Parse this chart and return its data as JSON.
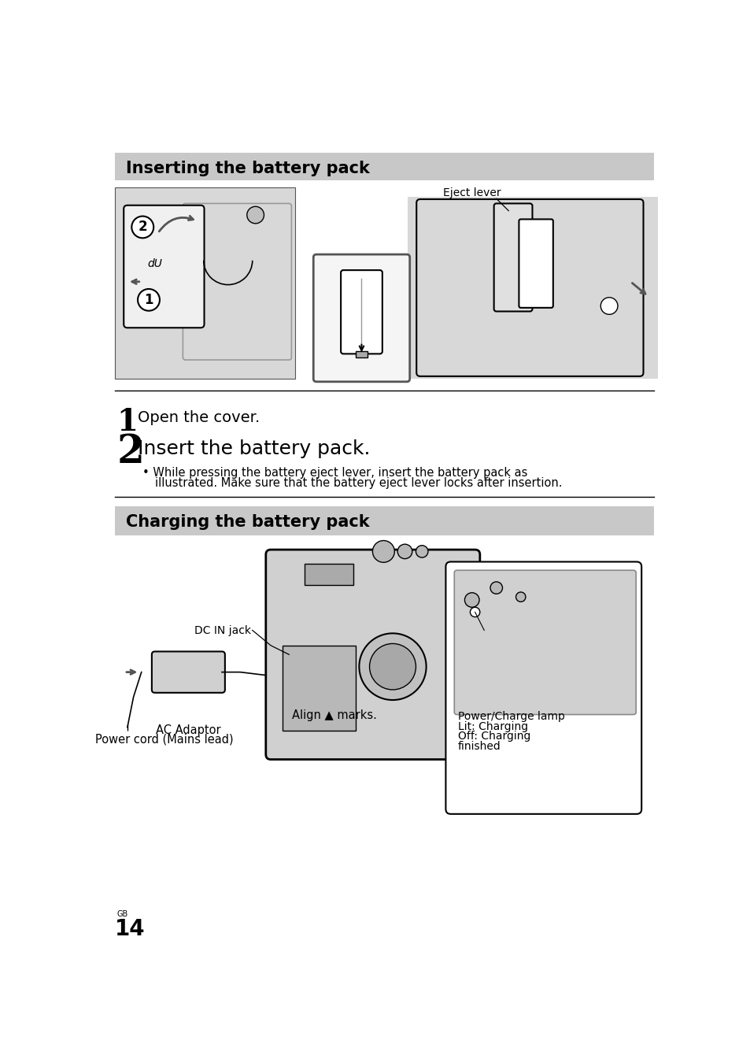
{
  "page_bg": "#ffffff",
  "header_bg": "#c8c8c8",
  "section1_title": "Inserting the battery pack",
  "section2_title": "Charging the battery pack",
  "step1_number": "1",
  "step1_text": "Open the cover.",
  "step2_number": "2",
  "step2_text": "Insert the battery pack.",
  "step2_bullet_line1": "• While pressing the battery eject lever, insert the battery pack as",
  "step2_bullet_line2": "illustrated. Make sure that the battery eject lever locks after insertion.",
  "eject_lever_label": "Eject lever",
  "dc_in_jack_label": "DC IN jack",
  "ac_adaptor_label": "AC Adaptor",
  "power_cord_label": "Power cord (Mains lead)",
  "align_label": "Align ▲ marks.",
  "power_charge_label_1": "Power/Charge lamp",
  "power_charge_label_2": "Lit: Charging",
  "power_charge_label_3": "Off: Charging",
  "power_charge_label_4": "finished",
  "page_number": "14",
  "page_label": "GB",
  "title_fontsize": 15,
  "body_fontsize": 10.5,
  "small_fontsize": 10,
  "header_color": "#c8c8c8",
  "diagram_fill": "#d8d8d8",
  "diagram_fill2": "#e8e8e8"
}
